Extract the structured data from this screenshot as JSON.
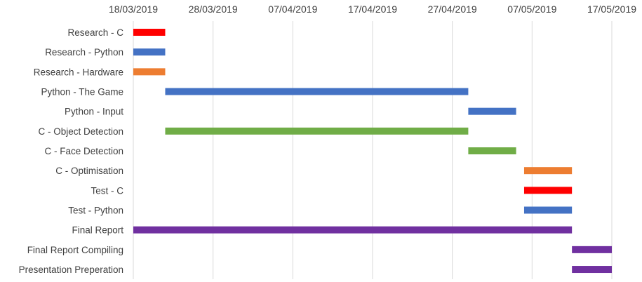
{
  "chart_data": {
    "type": "bar",
    "orientation": "horizontal-gantt",
    "x_axis": {
      "type": "date",
      "position": "top",
      "range": [
        "2019-03-18",
        "2019-05-17"
      ],
      "ticks": [
        {
          "value": "2019-03-18",
          "label": "18/03/2019"
        },
        {
          "value": "2019-03-28",
          "label": "28/03/2019"
        },
        {
          "value": "2019-04-07",
          "label": "07/04/2019"
        },
        {
          "value": "2019-04-17",
          "label": "17/04/2019"
        },
        {
          "value": "2019-04-27",
          "label": "27/04/2019"
        },
        {
          "value": "2019-05-07",
          "label": "07/05/2019"
        },
        {
          "value": "2019-05-17",
          "label": "17/05/2019"
        }
      ]
    },
    "grid": true,
    "legend": "none",
    "tasks": [
      {
        "label": "Research - C",
        "start": "2019-03-18",
        "end": "2019-03-22",
        "color": "#ff0000"
      },
      {
        "label": "Research - Python",
        "start": "2019-03-18",
        "end": "2019-03-22",
        "color": "#4472c4"
      },
      {
        "label": "Research - Hardware",
        "start": "2019-03-18",
        "end": "2019-03-22",
        "color": "#ed7d31"
      },
      {
        "label": "Python - The Game",
        "start": "2019-03-22",
        "end": "2019-04-29",
        "color": "#4472c4"
      },
      {
        "label": "Python - Input",
        "start": "2019-04-29",
        "end": "2019-05-05",
        "color": "#4472c4"
      },
      {
        "label": "C - Object Detection",
        "start": "2019-03-22",
        "end": "2019-04-29",
        "color": "#70ad47"
      },
      {
        "label": "C - Face Detection",
        "start": "2019-04-29",
        "end": "2019-05-05",
        "color": "#70ad47"
      },
      {
        "label": "C - Optimisation",
        "start": "2019-05-06",
        "end": "2019-05-12",
        "color": "#ed7d31"
      },
      {
        "label": "Test - C",
        "start": "2019-05-06",
        "end": "2019-05-12",
        "color": "#ff0000"
      },
      {
        "label": "Test - Python",
        "start": "2019-05-06",
        "end": "2019-05-12",
        "color": "#4472c4"
      },
      {
        "label": "Final Report",
        "start": "2019-03-18",
        "end": "2019-05-12",
        "color": "#7030a0"
      },
      {
        "label": "Final Report Compiling",
        "start": "2019-05-12",
        "end": "2019-05-17",
        "color": "#7030a0"
      },
      {
        "label": "Presentation Preperation",
        "start": "2019-05-12",
        "end": "2019-05-17",
        "color": "#7030a0"
      }
    ]
  }
}
